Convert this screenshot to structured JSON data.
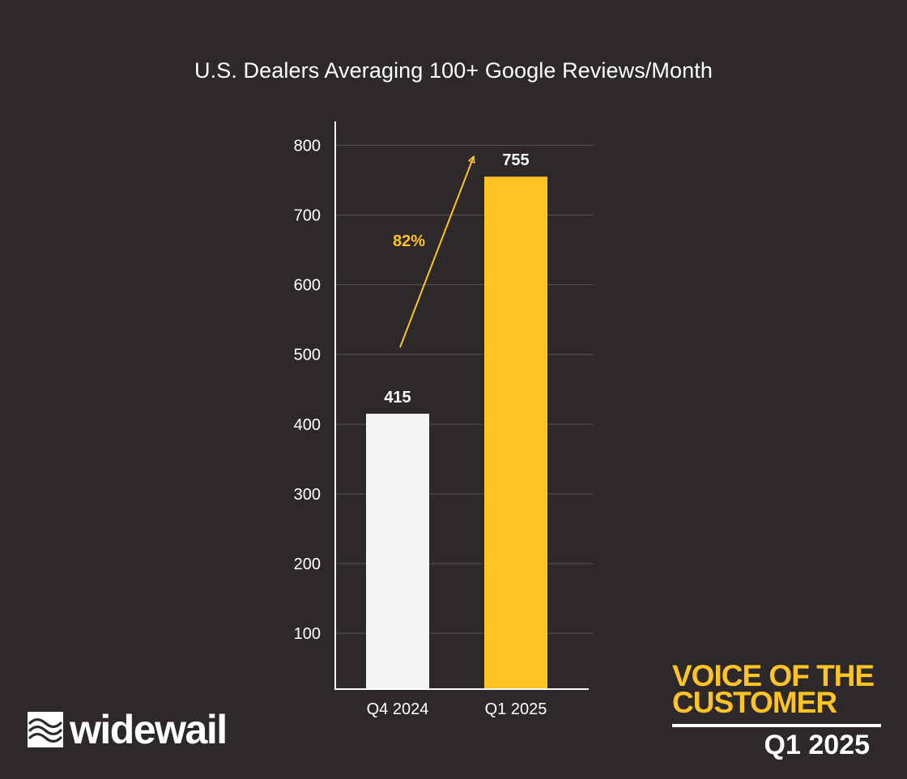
{
  "chart_data": {
    "type": "bar",
    "title": "U.S. Dealers Averaging 100+ Google Reviews/Month",
    "categories": [
      "Q4 2024",
      "Q1 2025"
    ],
    "values": [
      415,
      755
    ],
    "value_labels": [
      "415",
      "755"
    ],
    "bar_colors": [
      "#f4f4f4",
      "#ffc323"
    ],
    "yticks": [
      100,
      200,
      300,
      400,
      500,
      600,
      700,
      800
    ],
    "ylim": [
      20,
      800
    ],
    "grid": true,
    "xlabel": "",
    "ylabel": "",
    "annotation": {
      "label": "82%",
      "color": "#ffc323",
      "from_category": "Q4 2024",
      "to_category": "Q1 2025"
    }
  },
  "branding": {
    "logo_icon": "widewail-wave-icon",
    "logo_text": "widewail",
    "report_line1": "VOICE OF THE",
    "report_line2": "CUSTOMER",
    "report_period": "Q1 2025",
    "accent_color": "#ffc323"
  }
}
